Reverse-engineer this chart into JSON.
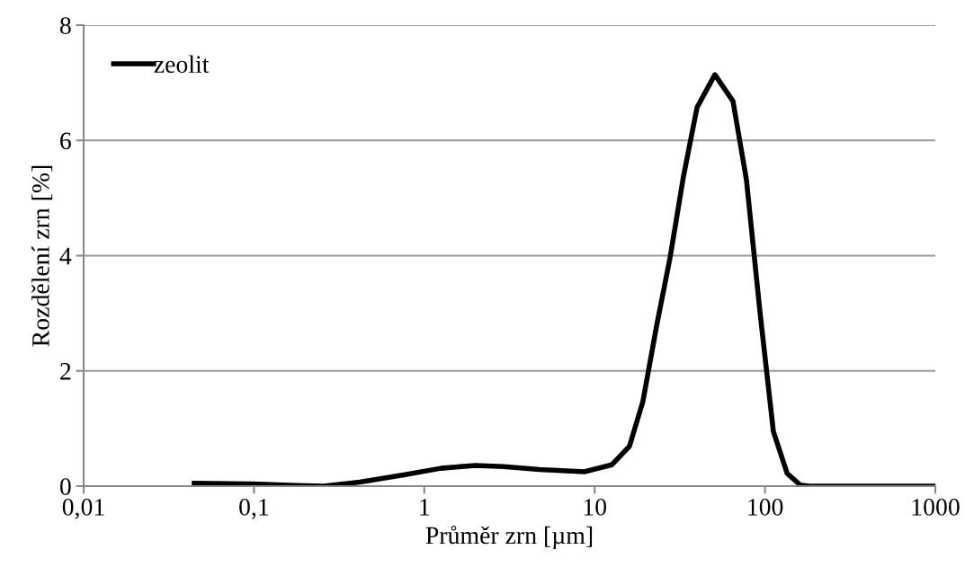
{
  "chart_data": {
    "type": "line",
    "xlabel": "Průměr zrn [µm]",
    "ylabel": "Rozdělení zrn [%]",
    "log": "x",
    "grid": "y",
    "legend": "top left",
    "marker": "none",
    "line_style": "solid",
    "xlim": [
      0.01,
      1000
    ],
    "xticks": [
      {
        "value": 0.01,
        "label": "0,01"
      },
      {
        "value": 0.1,
        "label": "0,1"
      },
      1,
      10,
      100,
      1000
    ],
    "ylim": [
      0,
      8
    ],
    "yticks": [
      0,
      2,
      4,
      6,
      8
    ],
    "series": [
      {
        "name": "zeolit",
        "color": "#000000",
        "x": [
          0.0446,
          0.097,
          0.178,
          0.257,
          0.418,
          0.77,
          1.25,
          2.0,
          2.92,
          4.75,
          8.7,
          12.6,
          16.0,
          19.2,
          23.1,
          27.7,
          33.2,
          39.9,
          50.8,
          64.9,
          77.8,
          93.4,
          112,
          135,
          161,
          182,
          1000
        ],
        "values": [
          0.05,
          0.04,
          0.01,
          0.0,
          0.07,
          0.2,
          0.31,
          0.36,
          0.34,
          0.29,
          0.25,
          0.37,
          0.69,
          1.47,
          2.78,
          3.96,
          5.37,
          6.57,
          7.14,
          6.68,
          5.32,
          3.03,
          0.95,
          0.22,
          0.02,
          0.0,
          0.0
        ]
      }
    ]
  }
}
